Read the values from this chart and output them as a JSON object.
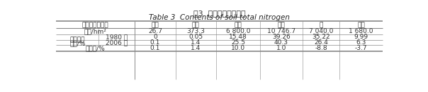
{
  "title_cn": "表3  土壤全氮含量状况",
  "title_en": "Table 3  Contents of soil total nitrogen",
  "col_headers": [
    "占总面积的比例",
    "丰富",
    "较丰",
    "中等",
    "较缺",
    "缺",
    "极缺"
  ],
  "area_row": {
    "label": "面积/hm²",
    "values": [
      "26.7",
      "373.3",
      "6 800.0",
      "10 746.7",
      "7 040.0",
      "1 680.0"
    ]
  },
  "group_label_line1": "占耕地总",
  "group_label_line2": "面积/%",
  "year_rows": [
    {
      "label": "1980 年",
      "values": [
        "0",
        "0.05",
        "15.48",
        "39.26",
        "35.22",
        "9.99"
      ]
    },
    {
      "label": "2006 年",
      "values": [
        "0.1",
        "1.4",
        "25.5",
        "40.3",
        "26.4",
        "6.3"
      ]
    }
  ],
  "change_row": {
    "label": "增减值/%",
    "values": [
      "0.1",
      "1.4",
      "10.0",
      "1.0",
      "-8.8",
      "-3.7"
    ]
  },
  "line_color": "#888888",
  "text_color": "#333333",
  "font_size": 6.5,
  "title_cn_fontsize": 8.0,
  "title_en_fontsize": 7.5
}
